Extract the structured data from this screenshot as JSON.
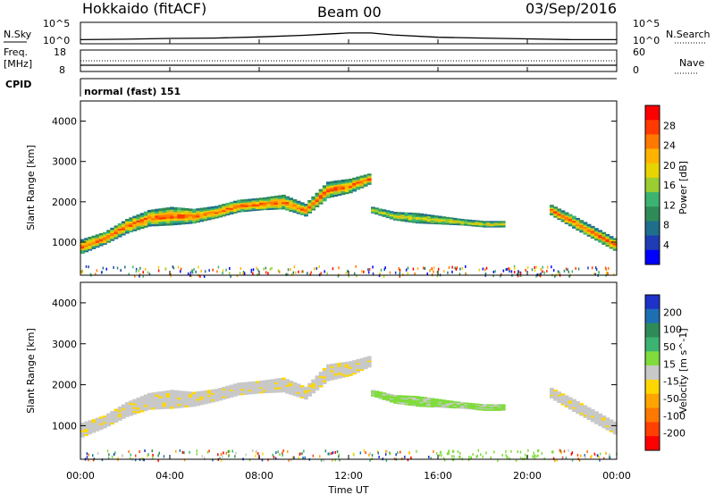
{
  "header": {
    "station": "Hokkaido (fitACF)",
    "beam": "Beam 00",
    "date": "03/Sep/2016"
  },
  "noise_panel": {
    "left_label": "N.Sky",
    "right_label": "N.Search",
    "top_tick": "10^5",
    "bottom_tick": "10^0"
  },
  "freq_panel": {
    "left_label_1": "Freq.",
    "left_label_2": "[MHz]",
    "left_tick_top": "18",
    "left_tick_bottom": "8",
    "right_label": "Nave",
    "right_tick_top": "60",
    "right_tick_bottom": "0"
  },
  "cpid_panel": {
    "label": "CPID",
    "mode": "normal (fast) 151"
  },
  "x_axis": {
    "label": "Time UT",
    "ticks": [
      "00:00",
      "04:00",
      "08:00",
      "12:00",
      "16:00",
      "20:00",
      "00:00"
    ]
  },
  "power_colorbar": {
    "label": "Power [dB]",
    "ticks": [
      "28",
      "24",
      "20",
      "16",
      "12",
      "8",
      "4"
    ],
    "colors": [
      "#ff0000",
      "#ff3a00",
      "#ff7800",
      "#ffb300",
      "#e8d400",
      "#9acd32",
      "#3cb371",
      "#2e8b57",
      "#1e6e8c",
      "#1e3cb4",
      "#0000ff"
    ]
  },
  "velocity_colorbar": {
    "label": "Velocity [m s^-1]",
    "ticks": [
      "200",
      "100",
      "50",
      "15",
      "-15",
      "-50",
      "-100",
      "-200"
    ],
    "colors": [
      "#1e32c8",
      "#1e6eb4",
      "#2e8b57",
      "#3cb371",
      "#7fdc3c",
      "#c8c8c8",
      "#ffd700",
      "#ffa500",
      "#ff7800",
      "#ff4000",
      "#ff0000"
    ]
  },
  "chart_data": [
    {
      "type": "line",
      "title": "N.Sky / N.Search noise",
      "x": [
        0,
        2,
        4,
        6,
        8,
        10,
        11,
        12,
        13,
        14,
        16,
        18,
        20,
        22,
        24
      ],
      "y_log10": [
        0.6,
        0.7,
        0.9,
        1.0,
        1.3,
        1.7,
        2.0,
        2.3,
        2.3,
        1.8,
        1.2,
        1.0,
        0.8,
        0.6,
        0.6
      ],
      "ylim": [
        "10^0",
        "10^5"
      ]
    },
    {
      "type": "heatmap",
      "ylabel": "Slant Range [km]",
      "xlabel": "Time UT",
      "xlim": [
        0,
        24
      ],
      "ylim": [
        180,
        4500
      ],
      "yticks": [
        1000,
        2000,
        3000,
        4000
      ],
      "colorbar": "Power [dB]",
      "bands": [
        {
          "x": [
            0,
            1,
            2,
            3,
            4,
            5,
            6,
            7,
            8,
            9,
            10,
            11,
            12,
            13
          ],
          "y_center": [
            900,
            1100,
            1400,
            1600,
            1650,
            1650,
            1750,
            1900,
            1950,
            2000,
            1800,
            2300,
            2400,
            2600
          ],
          "thickness": [
            350,
            300,
            350,
            400,
            450,
            350,
            300,
            300,
            300,
            350,
            300,
            400,
            350,
            250
          ],
          "level": "high"
        },
        {
          "x": [
            13,
            14,
            15,
            16,
            17,
            18,
            19
          ],
          "y_center": [
            1800,
            1650,
            1600,
            1550,
            1500,
            1450,
            1450
          ],
          "thickness": [
            150,
            200,
            250,
            200,
            150,
            150,
            150
          ],
          "level": "mid"
        },
        {
          "x": [
            21,
            22,
            23,
            24
          ],
          "y_center": [
            1800,
            1500,
            1200,
            900
          ],
          "thickness": [
            250,
            300,
            300,
            300
          ],
          "level": "high"
        }
      ]
    },
    {
      "type": "heatmap",
      "ylabel": "Slant Range [km]",
      "xlabel": "Time UT",
      "xlim": [
        0,
        24
      ],
      "ylim": [
        180,
        4500
      ],
      "yticks": [
        1000,
        2000,
        3000,
        4000
      ],
      "colorbar": "Velocity [m s^-1]",
      "bands": [
        {
          "x": [
            0,
            1,
            2,
            3,
            4,
            5,
            6,
            7,
            8,
            9,
            10,
            11,
            12,
            13
          ],
          "y_center": [
            900,
            1100,
            1400,
            1600,
            1650,
            1650,
            1750,
            1900,
            1950,
            2000,
            1800,
            2300,
            2400,
            2600
          ],
          "thickness": [
            350,
            300,
            350,
            400,
            450,
            350,
            300,
            300,
            300,
            350,
            300,
            400,
            350,
            250
          ],
          "level": "gray"
        },
        {
          "x": [
            13,
            14,
            15,
            16,
            17,
            18,
            19
          ],
          "y_center": [
            1800,
            1650,
            1600,
            1550,
            1500,
            1450,
            1450
          ],
          "thickness": [
            150,
            200,
            250,
            200,
            150,
            150,
            150
          ],
          "level": "green"
        },
        {
          "x": [
            21,
            22,
            23,
            24
          ],
          "y_center": [
            1800,
            1500,
            1200,
            900
          ],
          "thickness": [
            250,
            300,
            300,
            300
          ],
          "level": "gray"
        }
      ]
    }
  ]
}
